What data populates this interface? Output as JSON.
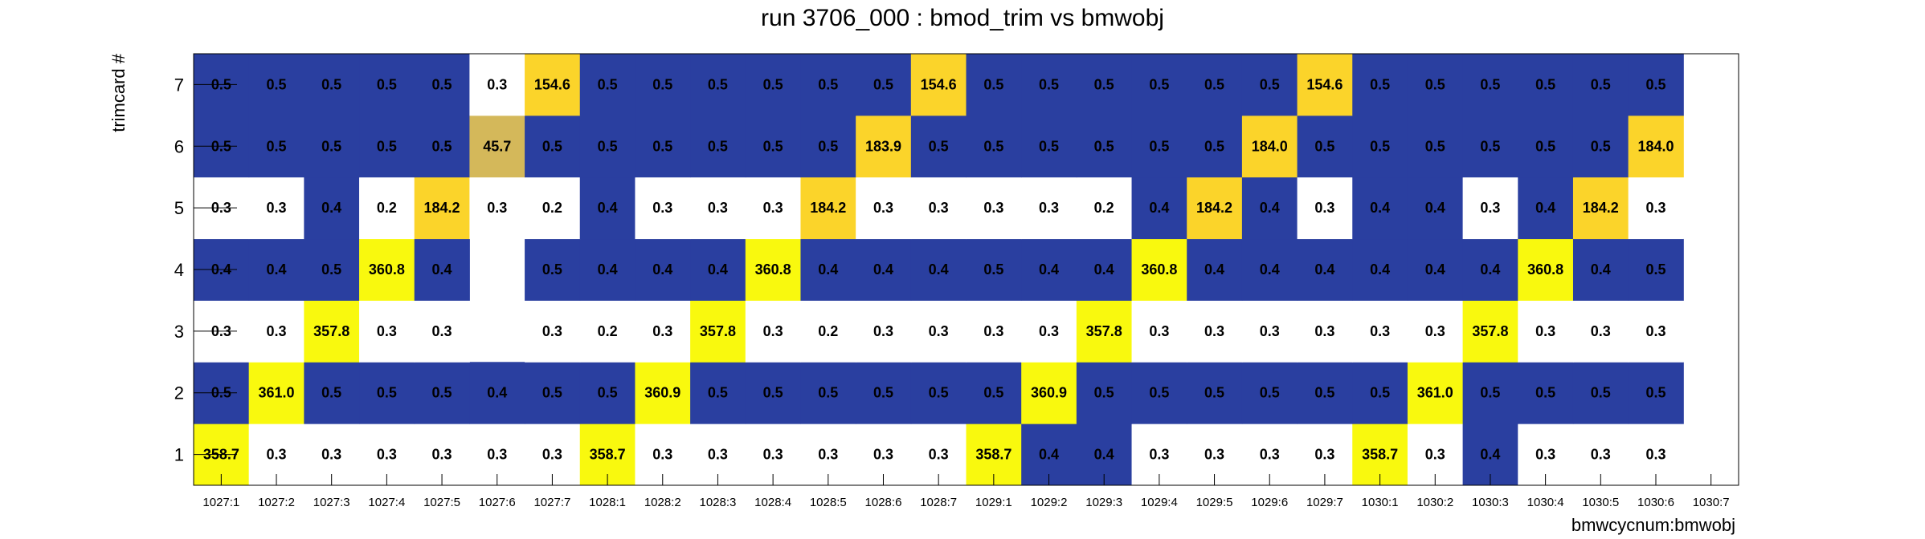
{
  "chart_data": {
    "type": "heatmap",
    "title": "run 3706_000 : bmod_trim vs bmwobj",
    "xlabel": "bmwcycnum:bmwobj",
    "ylabel": "trimcard #",
    "x_categories": [
      "1027:1",
      "1027:2",
      "1027:3",
      "1027:4",
      "1027:5",
      "1027:6",
      "1027:7",
      "1028:1",
      "1028:2",
      "1028:3",
      "1028:4",
      "1028:5",
      "1028:6",
      "1028:7",
      "1029:1",
      "1029:2",
      "1029:3",
      "1029:4",
      "1029:5",
      "1029:6",
      "1029:7",
      "1030:1",
      "1030:2",
      "1030:3",
      "1030:4",
      "1030:5",
      "1030:6",
      "1030:7"
    ],
    "y_categories": [
      "1",
      "2",
      "3",
      "4",
      "5",
      "6",
      "7"
    ],
    "values": [
      [
        "358.7",
        "0.3",
        "0.3",
        "0.3",
        "0.3",
        "0.3",
        "0.3",
        "358.7",
        "0.3",
        "0.3",
        "0.3",
        "0.3",
        "0.3",
        "0.3",
        "358.7",
        "0.4",
        "0.4",
        "0.3",
        "0.3",
        "0.3",
        "0.3",
        "358.7",
        "0.3",
        "0.4",
        "0.3",
        "0.3",
        "0.3",
        ""
      ],
      [
        "0.5",
        "361.0",
        "0.5",
        "0.5",
        "0.5",
        "0.4",
        "0.5",
        "0.5",
        "360.9",
        "0.5",
        "0.5",
        "0.5",
        "0.5",
        "0.5",
        "0.5",
        "360.9",
        "0.5",
        "0.5",
        "0.5",
        "0.5",
        "0.5",
        "0.5",
        "361.0",
        "0.5",
        "0.5",
        "0.5",
        "0.5",
        ""
      ],
      [
        "0.3",
        "0.3",
        "357.8",
        "0.3",
        "0.3",
        "",
        "0.3",
        "0.2",
        "0.3",
        "357.8",
        "0.3",
        "0.2",
        "0.3",
        "0.3",
        "0.3",
        "0.3",
        "357.8",
        "0.3",
        "0.3",
        "0.3",
        "0.3",
        "0.3",
        "0.3",
        "357.8",
        "0.3",
        "0.3",
        "0.3",
        ""
      ],
      [
        "0.4",
        "0.4",
        "0.5",
        "360.8",
        "0.4",
        "",
        "0.5",
        "0.4",
        "0.4",
        "0.4",
        "360.8",
        "0.4",
        "0.4",
        "0.4",
        "0.5",
        "0.4",
        "0.4",
        "360.8",
        "0.4",
        "0.4",
        "0.4",
        "0.4",
        "0.4",
        "0.4",
        "360.8",
        "0.4",
        "0.5",
        ""
      ],
      [
        "0.3",
        "0.3",
        "0.4",
        "0.2",
        "184.2",
        "0.3",
        "0.2",
        "0.4",
        "0.3",
        "0.3",
        "0.3",
        "184.2",
        "0.3",
        "0.3",
        "0.3",
        "0.3",
        "0.2",
        "0.4",
        "184.2",
        "0.4",
        "0.3",
        "0.4",
        "0.4",
        "0.3",
        "0.4",
        "184.2",
        "0.3",
        ""
      ],
      [
        "0.5",
        "0.5",
        "0.5",
        "0.5",
        "0.5",
        "45.7",
        "0.5",
        "0.5",
        "0.5",
        "0.5",
        "0.5",
        "0.5",
        "183.9",
        "0.5",
        "0.5",
        "0.5",
        "0.5",
        "0.5",
        "0.5",
        "184.0",
        "0.5",
        "0.5",
        "0.5",
        "0.5",
        "0.5",
        "0.5",
        "184.0",
        ""
      ],
      [
        "0.5",
        "0.5",
        "0.5",
        "0.5",
        "0.5",
        "0.3",
        "154.6",
        "0.5",
        "0.5",
        "0.5",
        "0.5",
        "0.5",
        "0.5",
        "154.6",
        "0.5",
        "0.5",
        "0.5",
        "0.5",
        "0.5",
        "0.5",
        "154.6",
        "0.5",
        "0.5",
        "0.5",
        "0.5",
        "0.5",
        "0.5",
        ""
      ]
    ],
    "color_scale": {
      "white": "#ffffff",
      "blue": "#2a3fa0",
      "olive": "#d4b85a",
      "orange": "#fbd42a",
      "yellow": "#f9f90e"
    },
    "grid": false,
    "legend": "none"
  }
}
